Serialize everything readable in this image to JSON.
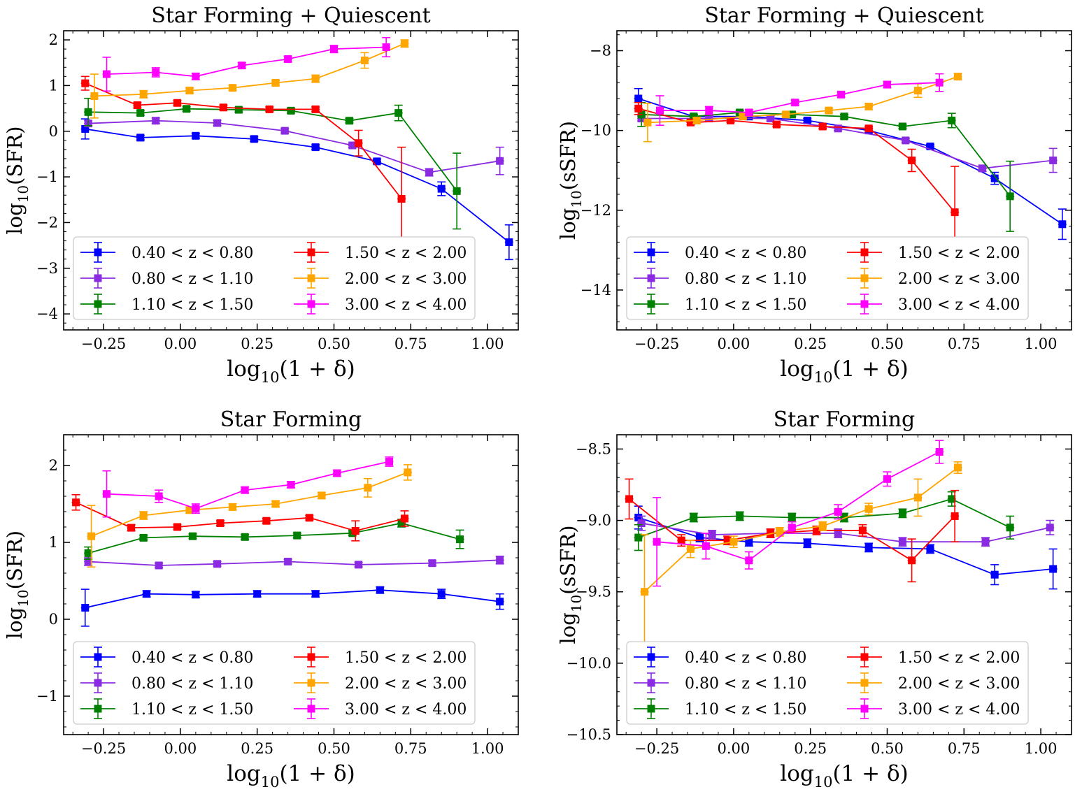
{
  "chart_data": [
    {
      "id": "p1",
      "type": "line",
      "title": "Star Forming + Quiescent",
      "xlabel": {
        "prefix": "log",
        "sub": "10",
        "suffix": "(1 + δ)"
      },
      "ylabel": {
        "prefix": "log",
        "sub": "10",
        "suffix": "(SFR)"
      },
      "xlim": [
        -0.38,
        1.1
      ],
      "ylim": [
        -4.35,
        2.2
      ],
      "xticks": [
        -0.25,
        0.0,
        0.25,
        0.5,
        0.75,
        1.0
      ],
      "xtick_labels": [
        "−0.25",
        "0.00",
        "0.25",
        "0.50",
        "0.75",
        "1.00"
      ],
      "yticks": [
        -4,
        -3,
        -2,
        -1,
        0,
        1,
        2
      ],
      "ytick_labels": [
        "−4",
        "−3",
        "−2",
        "−1",
        "0",
        "1",
        "2"
      ],
      "legend_location": "lower-left",
      "series": [
        {
          "name": "0.40 < z < 0.80",
          "color": "#0000ff",
          "x": [
            -0.31,
            -0.13,
            0.05,
            0.24,
            0.44,
            0.64,
            0.85,
            1.07
          ],
          "y": [
            0.05,
            -0.14,
            -0.1,
            -0.17,
            -0.35,
            -0.66,
            -1.26,
            -2.43
          ],
          "err": [
            0.22,
            0.05,
            0.05,
            0.05,
            0.05,
            0.05,
            0.15,
            0.38
          ]
        },
        {
          "name": "0.80 < z < 1.10",
          "color": "#8a2be2",
          "x": [
            -0.3,
            -0.08,
            0.12,
            0.34,
            0.56,
            0.81,
            1.04
          ],
          "y": [
            0.17,
            0.23,
            0.18,
            0.01,
            -0.31,
            -0.9,
            -0.65
          ],
          "err": [
            0.06,
            0.06,
            0.06,
            0.05,
            0.05,
            0.08,
            0.3
          ]
        },
        {
          "name": "1.10 < z < 1.50",
          "color": "#008000",
          "x": [
            -0.3,
            -0.13,
            0.02,
            0.19,
            0.36,
            0.55,
            0.71,
            0.9
          ],
          "y": [
            0.42,
            0.4,
            0.49,
            0.47,
            0.45,
            0.23,
            0.4,
            -1.31
          ],
          "err": [
            0.3,
            0.05,
            0.05,
            0.05,
            0.05,
            0.05,
            0.17,
            0.83
          ]
        },
        {
          "name": "1.50 < z < 2.00",
          "color": "#ff0000",
          "x": [
            -0.31,
            -0.14,
            -0.01,
            0.14,
            0.29,
            0.44,
            0.58,
            0.72
          ],
          "y": [
            1.05,
            0.57,
            0.62,
            0.52,
            0.48,
            0.48,
            -0.26,
            -1.48
          ],
          "err": [
            0.15,
            0.06,
            0.05,
            0.05,
            0.05,
            0.05,
            0.28,
            1.13
          ]
        },
        {
          "name": "2.00 < z < 3.00",
          "color": "#ffa500",
          "x": [
            -0.28,
            -0.12,
            0.03,
            0.17,
            0.31,
            0.44,
            0.6,
            0.73
          ],
          "y": [
            0.77,
            0.81,
            0.89,
            0.95,
            1.06,
            1.15,
            1.55,
            1.92
          ],
          "err": [
            0.48,
            0.08,
            0.06,
            0.05,
            0.05,
            0.08,
            0.17,
            0.08
          ]
        },
        {
          "name": "3.00 < z < 4.00",
          "color": "#ff00ff",
          "x": [
            -0.24,
            -0.08,
            0.05,
            0.2,
            0.35,
            0.5,
            0.67
          ],
          "y": [
            1.25,
            1.29,
            1.2,
            1.44,
            1.58,
            1.8,
            1.84
          ],
          "err": [
            0.37,
            0.1,
            0.07,
            0.06,
            0.06,
            0.08,
            0.21
          ]
        }
      ]
    },
    {
      "id": "p2",
      "type": "line",
      "title": "Star Forming + Quiescent",
      "xlabel": {
        "prefix": "log",
        "sub": "10",
        "suffix": "(1 + δ)"
      },
      "ylabel": {
        "prefix": "log",
        "sub": "10",
        "suffix": "(sSFR)"
      },
      "xlim": [
        -0.38,
        1.1
      ],
      "ylim": [
        -15.0,
        -7.5
      ],
      "xticks": [
        -0.25,
        0.0,
        0.25,
        0.5,
        0.75,
        1.0
      ],
      "xtick_labels": [
        "−0.25",
        "0.00",
        "0.25",
        "0.50",
        "0.75",
        "1.00"
      ],
      "yticks": [
        -14,
        -12,
        -10,
        -8
      ],
      "ytick_labels": [
        "−14",
        "−12",
        "−10",
        "−8"
      ],
      "legend_location": "lower-left",
      "series": [
        {
          "name": "0.40 < z < 0.80",
          "color": "#0000ff",
          "x": [
            -0.31,
            -0.13,
            0.05,
            0.24,
            0.44,
            0.64,
            0.85,
            1.07
          ],
          "y": [
            -9.2,
            -9.65,
            -9.65,
            -9.75,
            -10.0,
            -10.4,
            -11.2,
            -12.35
          ],
          "err": [
            0.25,
            0.05,
            0.05,
            0.05,
            0.05,
            0.05,
            0.15,
            0.38
          ]
        },
        {
          "name": "0.80 < z < 1.10",
          "color": "#8a2be2",
          "x": [
            -0.3,
            -0.08,
            0.12,
            0.34,
            0.56,
            0.81,
            1.04
          ],
          "y": [
            -9.7,
            -9.7,
            -9.7,
            -9.95,
            -10.25,
            -10.95,
            -10.75
          ],
          "err": [
            0.06,
            0.06,
            0.06,
            0.05,
            0.05,
            0.08,
            0.3
          ]
        },
        {
          "name": "1.10 < z < 1.50",
          "color": "#008000",
          "x": [
            -0.3,
            -0.13,
            0.02,
            0.19,
            0.36,
            0.55,
            0.71,
            0.9
          ],
          "y": [
            -9.6,
            -9.65,
            -9.55,
            -9.6,
            -9.65,
            -9.9,
            -9.75,
            -11.65
          ],
          "err": [
            0.3,
            0.05,
            0.05,
            0.05,
            0.05,
            0.05,
            0.18,
            0.88
          ]
        },
        {
          "name": "1.50 < z < 2.00",
          "color": "#ff0000",
          "x": [
            -0.31,
            -0.14,
            -0.01,
            0.14,
            0.29,
            0.44,
            0.58,
            0.72
          ],
          "y": [
            -9.45,
            -9.8,
            -9.75,
            -9.85,
            -9.9,
            -9.95,
            -10.75,
            -12.05
          ],
          "err": [
            0.15,
            0.06,
            0.05,
            0.05,
            0.05,
            0.05,
            0.28,
            1.15
          ]
        },
        {
          "name": "2.00 < z < 3.00",
          "color": "#ffa500",
          "x": [
            -0.28,
            -0.12,
            0.03,
            0.17,
            0.31,
            0.44,
            0.6,
            0.73
          ],
          "y": [
            -9.8,
            -9.75,
            -9.65,
            -9.6,
            -9.5,
            -9.4,
            -9.0,
            -8.65
          ],
          "err": [
            0.48,
            0.08,
            0.06,
            0.05,
            0.05,
            0.08,
            0.17,
            0.08
          ]
        },
        {
          "name": "3.00 < z < 4.00",
          "color": "#ff00ff",
          "x": [
            -0.24,
            -0.08,
            0.05,
            0.2,
            0.35,
            0.5,
            0.67
          ],
          "y": [
            -9.5,
            -9.5,
            -9.55,
            -9.3,
            -9.1,
            -8.85,
            -8.8
          ],
          "err": [
            0.37,
            0.1,
            0.07,
            0.06,
            0.06,
            0.08,
            0.22
          ]
        }
      ]
    },
    {
      "id": "p3",
      "type": "line",
      "title": "Star Forming",
      "xlabel": {
        "prefix": "log",
        "sub": "10",
        "suffix": "(1 + δ)"
      },
      "ylabel": {
        "prefix": "log",
        "sub": "10",
        "suffix": "(SFR)"
      },
      "xlim": [
        -0.38,
        1.1
      ],
      "ylim": [
        -1.5,
        2.4
      ],
      "xticks": [
        -0.25,
        0.0,
        0.25,
        0.5,
        0.75,
        1.0
      ],
      "xtick_labels": [
        "−0.25",
        "0.00",
        "0.25",
        "0.50",
        "0.75",
        "1.00"
      ],
      "yticks": [
        -1,
        0,
        1,
        2
      ],
      "ytick_labels": [
        "−1",
        "0",
        "1",
        "2"
      ],
      "legend_location": "lower-left",
      "series": [
        {
          "name": "0.40 < z < 0.80",
          "color": "#0000ff",
          "x": [
            -0.31,
            -0.11,
            0.05,
            0.25,
            0.44,
            0.65,
            0.85,
            1.04
          ],
          "y": [
            0.15,
            0.33,
            0.32,
            0.33,
            0.33,
            0.38,
            0.33,
            0.23
          ],
          "err": [
            0.24,
            0.04,
            0.04,
            0.04,
            0.04,
            0.04,
            0.06,
            0.1
          ]
        },
        {
          "name": "0.80 < z < 1.10",
          "color": "#8a2be2",
          "x": [
            -0.3,
            -0.07,
            0.12,
            0.35,
            0.58,
            0.82,
            1.04
          ],
          "y": [
            0.75,
            0.7,
            0.72,
            0.75,
            0.71,
            0.73,
            0.77
          ],
          "err": [
            0.05,
            0.03,
            0.03,
            0.03,
            0.03,
            0.03,
            0.05
          ]
        },
        {
          "name": "1.10 < z < 1.50",
          "color": "#008000",
          "x": [
            -0.3,
            -0.12,
            0.04,
            0.21,
            0.38,
            0.56,
            0.72,
            0.91
          ],
          "y": [
            0.86,
            1.06,
            1.08,
            1.07,
            1.09,
            1.12,
            1.25,
            1.04
          ],
          "err": [
            0.08,
            0.03,
            0.03,
            0.03,
            0.03,
            0.03,
            0.05,
            0.12
          ]
        },
        {
          "name": "1.50 < z < 2.00",
          "color": "#ff0000",
          "x": [
            -0.34,
            -0.16,
            -0.01,
            0.13,
            0.28,
            0.42,
            0.57,
            0.73
          ],
          "y": [
            1.52,
            1.19,
            1.2,
            1.25,
            1.28,
            1.32,
            1.15,
            1.31
          ],
          "err": [
            0.1,
            0.04,
            0.03,
            0.03,
            0.03,
            0.03,
            0.13,
            0.1
          ]
        },
        {
          "name": "2.00 < z < 3.00",
          "color": "#ffa500",
          "x": [
            -0.29,
            -0.12,
            0.03,
            0.17,
            0.31,
            0.46,
            0.61,
            0.74
          ],
          "y": [
            1.08,
            1.35,
            1.42,
            1.46,
            1.5,
            1.61,
            1.71,
            1.91
          ],
          "err": [
            0.4,
            0.05,
            0.04,
            0.04,
            0.04,
            0.04,
            0.12,
            0.1
          ]
        },
        {
          "name": "3.00 < z < 4.00",
          "color": "#ff00ff",
          "x": [
            -0.24,
            -0.07,
            0.05,
            0.21,
            0.36,
            0.51,
            0.68
          ],
          "y": [
            1.63,
            1.6,
            1.44,
            1.68,
            1.75,
            1.9,
            2.05
          ],
          "err": [
            0.3,
            0.08,
            0.06,
            0.04,
            0.04,
            0.04,
            0.06
          ]
        }
      ]
    },
    {
      "id": "p4",
      "type": "line",
      "title": "Star Forming",
      "xlabel": {
        "prefix": "log",
        "sub": "10",
        "suffix": "(1 + δ)"
      },
      "ylabel": {
        "prefix": "log",
        "sub": "10",
        "suffix": "(sSFR)"
      },
      "xlim": [
        -0.38,
        1.1
      ],
      "ylim": [
        -10.5,
        -8.4
      ],
      "xticks": [
        -0.25,
        0.0,
        0.25,
        0.5,
        0.75,
        1.0
      ],
      "xtick_labels": [
        "−0.25",
        "0.00",
        "0.25",
        "0.50",
        "0.75",
        "1.00"
      ],
      "yticks": [
        -10.5,
        -10.0,
        -9.5,
        -9.0,
        -8.5
      ],
      "ytick_labels": [
        "−10.5",
        "−10.0",
        "−9.5",
        "−9.0",
        "−8.5"
      ],
      "legend_location": "lower-left",
      "series": [
        {
          "name": "0.40 < z < 0.80",
          "color": "#0000ff",
          "x": [
            -0.31,
            -0.11,
            0.05,
            0.24,
            0.44,
            0.64,
            0.85,
            1.04
          ],
          "y": [
            -8.98,
            -9.12,
            -9.15,
            -9.16,
            -9.19,
            -9.2,
            -9.38,
            -9.34
          ],
          "err": [
            0.08,
            0.03,
            0.03,
            0.03,
            0.03,
            0.03,
            0.07,
            0.14
          ]
        },
        {
          "name": "0.80 < z < 1.10",
          "color": "#8a2be2",
          "x": [
            -0.3,
            -0.07,
            0.12,
            0.34,
            0.55,
            0.82,
            1.03
          ],
          "y": [
            -9.02,
            -9.1,
            -9.09,
            -9.09,
            -9.15,
            -9.15,
            -9.05
          ],
          "err": [
            0.05,
            0.03,
            0.03,
            0.03,
            0.03,
            0.03,
            0.05
          ]
        },
        {
          "name": "1.10 < z < 1.50",
          "color": "#008000",
          "x": [
            -0.31,
            -0.13,
            0.02,
            0.19,
            0.36,
            0.55,
            0.71,
            0.9
          ],
          "y": [
            -9.12,
            -8.98,
            -8.97,
            -8.98,
            -8.98,
            -8.95,
            -8.85,
            -9.05
          ],
          "err": [
            0.09,
            0.03,
            0.03,
            0.03,
            0.03,
            0.03,
            0.05,
            0.08
          ]
        },
        {
          "name": "1.50 < z < 2.00",
          "color": "#ff0000",
          "x": [
            -0.34,
            -0.17,
            -0.02,
            0.12,
            0.27,
            0.42,
            0.58,
            0.72
          ],
          "y": [
            -8.85,
            -9.14,
            -9.14,
            -9.09,
            -9.07,
            -9.07,
            -9.28,
            -8.97
          ],
          "err": [
            0.14,
            0.04,
            0.03,
            0.03,
            0.03,
            0.04,
            0.15,
            0.18
          ]
        },
        {
          "name": "2.00 < z < 3.00",
          "color": "#ffa500",
          "x": [
            -0.29,
            -0.14,
            0.0,
            0.15,
            0.29,
            0.44,
            0.6,
            0.73
          ],
          "y": [
            -9.5,
            -9.2,
            -9.15,
            -9.08,
            -9.04,
            -8.92,
            -8.84,
            -8.63
          ],
          "err": [
            0.4,
            0.06,
            0.04,
            0.03,
            0.03,
            0.04,
            0.13,
            0.04
          ]
        },
        {
          "name": "3.00 < z < 4.00",
          "color": "#ff00ff",
          "x": [
            -0.25,
            -0.09,
            0.05,
            0.19,
            0.34,
            0.5,
            0.67
          ],
          "y": [
            -9.15,
            -9.18,
            -9.28,
            -9.05,
            -8.94,
            -8.71,
            -8.52
          ],
          "err": [
            0.31,
            0.09,
            0.06,
            0.04,
            0.05,
            0.05,
            0.08
          ]
        }
      ]
    }
  ]
}
